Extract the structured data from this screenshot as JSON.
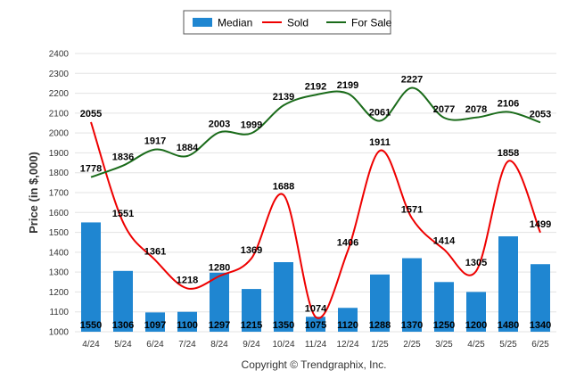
{
  "chart_data": {
    "type": "bar",
    "categories": [
      "4/24",
      "5/24",
      "6/24",
      "7/24",
      "8/24",
      "9/24",
      "10/24",
      "11/24",
      "12/24",
      "1/25",
      "2/25",
      "3/25",
      "4/25",
      "5/25",
      "6/25"
    ],
    "series": [
      {
        "name": "Median",
        "type": "bar",
        "color": "#1f86d1",
        "values": [
          1550,
          1306,
          1097,
          1100,
          1297,
          1215,
          1350,
          1075,
          1120,
          1288,
          1370,
          1250,
          1200,
          1480,
          1340
        ]
      },
      {
        "name": "Sold",
        "type": "line",
        "color": "#ee0000",
        "values": [
          2055,
          1551,
          1361,
          1218,
          1280,
          1369,
          1688,
          1074,
          1406,
          1911,
          1571,
          1414,
          1305,
          1858,
          1499
        ]
      },
      {
        "name": "For Sale",
        "type": "line",
        "color": "#1a6b1a",
        "values": [
          1778,
          1836,
          1917,
          1884,
          2003,
          1999,
          2139,
          2192,
          2199,
          2061,
          2227,
          2077,
          2078,
          2106,
          2053
        ]
      }
    ],
    "ylabel": "Price (in $,000)",
    "ylim": [
      1000,
      2400
    ],
    "yticks": [
      1000,
      1100,
      1200,
      1300,
      1400,
      1500,
      1600,
      1700,
      1800,
      1900,
      2000,
      2100,
      2200,
      2300,
      2400
    ],
    "grid": true,
    "legend_position": "top-center"
  },
  "footer": {
    "copyright": "Copyright © Trendgraphix, Inc."
  }
}
